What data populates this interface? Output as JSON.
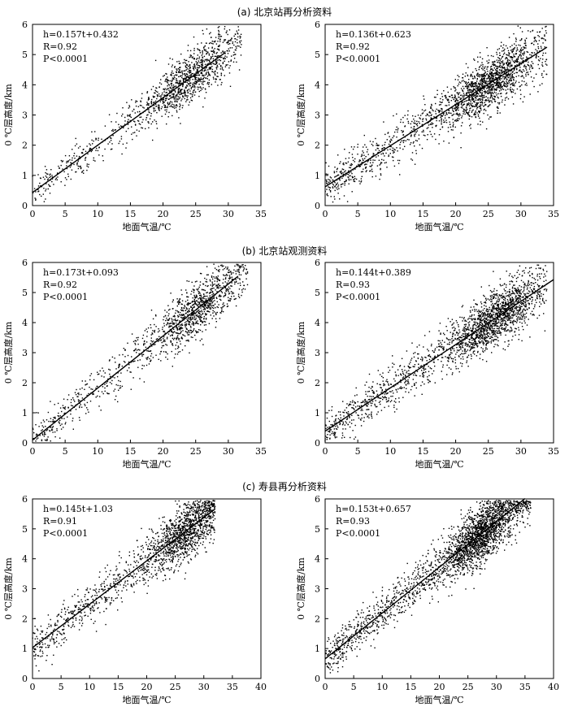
{
  "figure": {
    "row_titles": [
      "(a) 北京站再分析资料",
      "(b) 北京站观测资料",
      "(c) 寿县再分析资料"
    ]
  },
  "chart_data": [
    {
      "type": "scatter",
      "group": "a",
      "xlabel": "地面气温/℃",
      "ylabel": "0 ℃层高度/km",
      "xlim": [
        0,
        35
      ],
      "ylim": [
        0,
        6
      ],
      "xticks": [
        0,
        5,
        10,
        15,
        20,
        25,
        30,
        35
      ],
      "yticks": [
        0,
        1,
        2,
        3,
        4,
        5,
        6
      ],
      "fit": {
        "slope": 0.157,
        "intercept": 0.432,
        "x_range": [
          0,
          29.5
        ]
      },
      "annotations": {
        "equation": "h=0.157t+0.432",
        "r": "R=0.92",
        "p": "P<0.0001"
      },
      "n_points": 1300,
      "x_range_points": [
        0,
        32
      ],
      "dense_center": [
        24,
        4.3
      ],
      "spread": 0.45,
      "seed": 11
    },
    {
      "type": "scatter",
      "group": "a",
      "xlabel": "地面气温/℃",
      "ylabel": "0 ℃层高度/km",
      "xlim": [
        0,
        35
      ],
      "ylim": [
        0,
        6
      ],
      "xticks": [
        0,
        5,
        10,
        15,
        20,
        25,
        30,
        35
      ],
      "yticks": [
        0,
        1,
        2,
        3,
        4,
        5,
        6
      ],
      "fit": {
        "slope": 0.136,
        "intercept": 0.623,
        "x_range": [
          0,
          34
        ]
      },
      "annotations": {
        "equation": "h=0.136t+0.623",
        "r": "R=0.92",
        "p": "P<0.0001"
      },
      "n_points": 2000,
      "x_range_points": [
        0,
        34
      ],
      "dense_center": [
        25,
        4.1
      ],
      "spread": 0.5,
      "seed": 23
    },
    {
      "type": "scatter",
      "group": "b",
      "xlabel": "地面气温/℃",
      "ylabel": "0 ℃层高度/km",
      "xlim": [
        0,
        35
      ],
      "ylim": [
        0,
        6
      ],
      "xticks": [
        0,
        5,
        10,
        15,
        20,
        25,
        30,
        35
      ],
      "yticks": [
        0,
        1,
        2,
        3,
        4,
        5,
        6
      ],
      "fit": {
        "slope": 0.173,
        "intercept": 0.093,
        "x_range": [
          0,
          31.5
        ]
      },
      "annotations": {
        "equation": "h=0.173t+0.093",
        "r": "R=0.92",
        "p": "P<0.0001"
      },
      "n_points": 1300,
      "x_range_points": [
        0,
        33
      ],
      "dense_center": [
        25,
        4.5
      ],
      "spread": 0.5,
      "seed": 37
    },
    {
      "type": "scatter",
      "group": "b",
      "xlabel": "地面气温/℃",
      "ylabel": "0 ℃层高度/km",
      "xlim": [
        0,
        35
      ],
      "ylim": [
        0,
        6
      ],
      "xticks": [
        0,
        5,
        10,
        15,
        20,
        25,
        30,
        35
      ],
      "yticks": [
        0,
        1,
        2,
        3,
        4,
        5,
        6
      ],
      "fit": {
        "slope": 0.144,
        "intercept": 0.389,
        "x_range": [
          0,
          35
        ]
      },
      "annotations": {
        "equation": "h=0.144t+0.389",
        "r": "R=0.93",
        "p": "P<0.0001"
      },
      "n_points": 2100,
      "x_range_points": [
        0,
        34
      ],
      "dense_center": [
        26,
        4.3
      ],
      "spread": 0.5,
      "seed": 41
    },
    {
      "type": "scatter",
      "group": "c",
      "xlabel": "地面气温/℃",
      "ylabel": "0 ℃层高度/km",
      "xlim": [
        0,
        40
      ],
      "ylim": [
        0,
        6
      ],
      "xticks": [
        0,
        5,
        10,
        15,
        20,
        25,
        30,
        35,
        40
      ],
      "yticks": [
        0,
        1,
        2,
        3,
        4,
        5,
        6
      ],
      "fit": {
        "slope": 0.145,
        "intercept": 1.03,
        "x_range": [
          0,
          32
        ]
      },
      "annotations": {
        "equation": "h=0.145t+1.03",
        "r": "R=0.91",
        "p": "P<0.0001"
      },
      "n_points": 1700,
      "x_range_points": [
        0,
        32
      ],
      "dense_center": [
        27,
        4.9
      ],
      "spread": 0.5,
      "seed": 53
    },
    {
      "type": "scatter",
      "group": "c",
      "xlabel": "地面气温/℃",
      "ylabel": "0 ℃层高度/km",
      "xlim": [
        0,
        40
      ],
      "ylim": [
        0,
        6
      ],
      "xticks": [
        0,
        5,
        10,
        15,
        20,
        25,
        30,
        35,
        40
      ],
      "yticks": [
        0,
        1,
        2,
        3,
        4,
        5,
        6
      ],
      "fit": {
        "slope": 0.153,
        "intercept": 0.657,
        "x_range": [
          0,
          35
        ]
      },
      "annotations": {
        "equation": "h=0.153t+0.657",
        "r": "R=0.93",
        "p": "P<0.0001"
      },
      "n_points": 2600,
      "x_range_points": [
        0,
        36
      ],
      "dense_center": [
        27,
        4.9
      ],
      "spread": 0.5,
      "seed": 67
    }
  ]
}
